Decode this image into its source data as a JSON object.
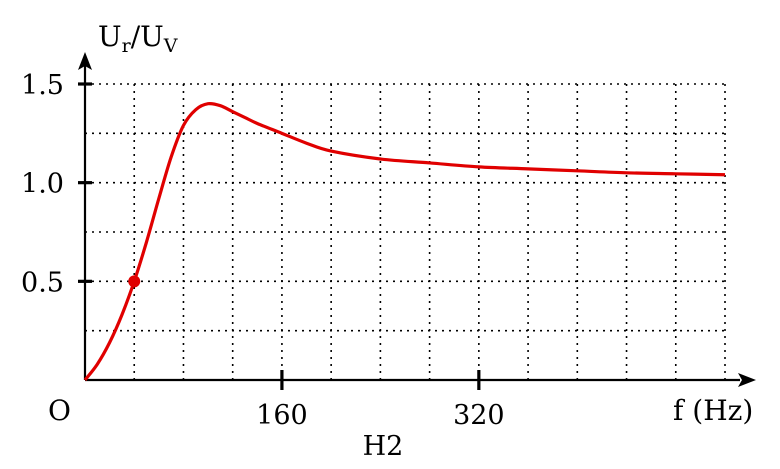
{
  "chart_data": {
    "type": "line",
    "ylabel": {
      "base": "U",
      "sub1": "r",
      "sep": "/U",
      "sub2": "V"
    },
    "xlabel": "f (Hz)",
    "origin_label": "O",
    "caption": "H2",
    "xlim": [
      0,
      520
    ],
    "ylim": [
      0,
      1.5
    ],
    "x_ticks": [
      160,
      320
    ],
    "x_tick_labels": [
      "160",
      "320"
    ],
    "y_ticks": [
      0.5,
      1.0,
      1.5
    ],
    "y_tick_labels": [
      "0.5",
      "1.0",
      "1.5"
    ],
    "grid": {
      "x_step": 40,
      "y_step": 0.25,
      "style": "dotted"
    },
    "series": [
      {
        "color": "#e00000",
        "x": [
          0,
          10,
          20,
          30,
          40,
          50,
          60,
          70,
          80,
          90,
          100,
          110,
          120,
          130,
          140,
          160,
          180,
          200,
          240,
          280,
          320,
          360,
          400,
          440,
          480,
          520
        ],
        "y": [
          0.0,
          0.08,
          0.19,
          0.33,
          0.5,
          0.7,
          0.92,
          1.13,
          1.29,
          1.37,
          1.4,
          1.39,
          1.36,
          1.33,
          1.3,
          1.25,
          1.2,
          1.16,
          1.12,
          1.1,
          1.08,
          1.07,
          1.06,
          1.05,
          1.045,
          1.04
        ]
      }
    ],
    "marked_point": {
      "x": 40,
      "y": 0.5,
      "color": "#e00000"
    }
  }
}
